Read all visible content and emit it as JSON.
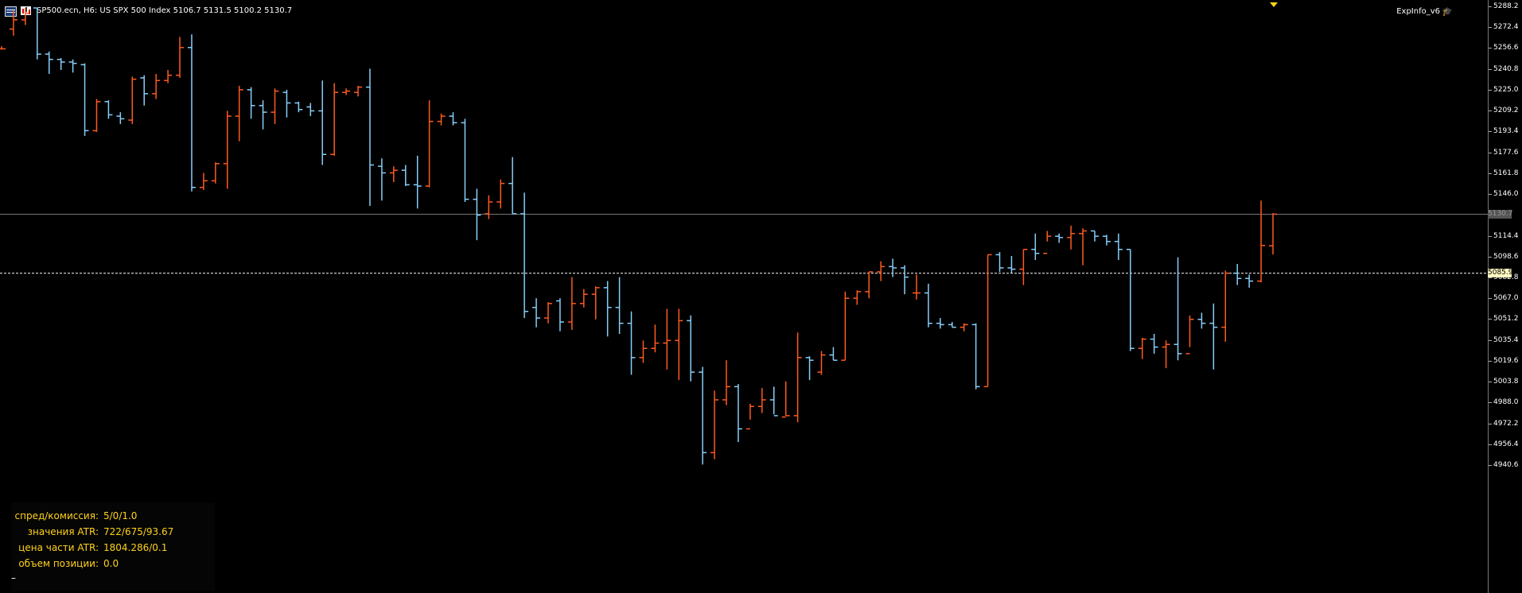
{
  "header": {
    "symbol_line": "SP500.ecn, H6:  US SPX 500 Index  5106.7 5131.5 5100.2 5130.7",
    "indicator_name": "ExpInfo_v6",
    "icons": [
      "chart-grid-icon",
      "bar-chart-icon",
      "graduation-cap-icon"
    ]
  },
  "price_axis": {
    "labels": [
      "5288.2",
      "5272.4",
      "5256.6",
      "5240.8",
      "5225.0",
      "5209.2",
      "5193.4",
      "5177.6",
      "5161.8",
      "5146.0",
      "5114.4",
      "5098.6",
      "5082.8",
      "5067.0",
      "5051.2",
      "5035.4",
      "5019.6",
      "5003.8",
      "4988.0",
      "4972.2",
      "4956.4",
      "4940.6"
    ],
    "current_price": "5085.9",
    "bid_price": "5130.7"
  },
  "info_panel": {
    "rows": [
      {
        "label": "спред/комиссия:",
        "value": "5/0/1.0"
      },
      {
        "label": "значения ATR:",
        "value": "722/675/93.67"
      },
      {
        "label": "цена части ATR:",
        "value": "1804.286/0.1"
      },
      {
        "label": "объем позиции:",
        "value": "0.0"
      }
    ],
    "footer": "–"
  },
  "colors": {
    "up": "#ff5a1f",
    "down": "#87cefa",
    "background": "#000000",
    "text": "#ffd21a"
  },
  "chart_data": {
    "type": "ohlc",
    "bars": [
      {
        "o": 5256.0,
        "h": 5258.0,
        "l": 5256.0,
        "c": 5256.0
      },
      {
        "o": 5271.0,
        "h": 5285.0,
        "l": 5266.0,
        "c": 5278.0
      },
      {
        "o": 5278.0,
        "h": 5287.0,
        "l": 5274.0,
        "c": 5283.0
      },
      {
        "o": 5287.0,
        "h": 5287.0,
        "l": 5248.0,
        "c": 5252.0
      },
      {
        "o": 5252.0,
        "h": 5254.0,
        "l": 5237.0,
        "c": 5248.0
      },
      {
        "o": 5248.0,
        "h": 5249.0,
        "l": 5240.0,
        "c": 5246.0
      },
      {
        "o": 5246.0,
        "h": 5248.0,
        "l": 5238.0,
        "c": 5245.0
      },
      {
        "o": 5244.0,
        "h": 5245.0,
        "l": 5190.0,
        "c": 5194.0
      },
      {
        "o": 5194.0,
        "h": 5218.0,
        "l": 5193.0,
        "c": 5216.0
      },
      {
        "o": 5216.0,
        "h": 5217.0,
        "l": 5203.0,
        "c": 5206.0
      },
      {
        "o": 5205.0,
        "h": 5208.0,
        "l": 5199.0,
        "c": 5203.0
      },
      {
        "o": 5202.0,
        "h": 5235.0,
        "l": 5199.0,
        "c": 5233.0
      },
      {
        "o": 5234.0,
        "h": 5236.0,
        "l": 5213.0,
        "c": 5222.0
      },
      {
        "o": 5222.0,
        "h": 5237.0,
        "l": 5218.0,
        "c": 5232.0
      },
      {
        "o": 5232.0,
        "h": 5240.0,
        "l": 5230.0,
        "c": 5236.0
      },
      {
        "o": 5236.0,
        "h": 5265.0,
        "l": 5234.0,
        "c": 5257.0
      },
      {
        "o": 5257.0,
        "h": 5267.0,
        "l": 5148.0,
        "c": 5151.0
      },
      {
        "o": 5151.0,
        "h": 5162.0,
        "l": 5149.0,
        "c": 5156.0
      },
      {
        "o": 5156.0,
        "h": 5170.0,
        "l": 5154.0,
        "c": 5169.0
      },
      {
        "o": 5169.0,
        "h": 5209.0,
        "l": 5150.0,
        "c": 5205.0
      },
      {
        "o": 5205.0,
        "h": 5228.0,
        "l": 5186.0,
        "c": 5225.0
      },
      {
        "o": 5225.0,
        "h": 5227.0,
        "l": 5203.0,
        "c": 5213.0
      },
      {
        "o": 5213.0,
        "h": 5217.0,
        "l": 5195.0,
        "c": 5208.0
      },
      {
        "o": 5208.0,
        "h": 5226.0,
        "l": 5199.0,
        "c": 5224.0
      },
      {
        "o": 5223.0,
        "h": 5225.0,
        "l": 5204.0,
        "c": 5215.0
      },
      {
        "o": 5215.0,
        "h": 5216.0,
        "l": 5208.0,
        "c": 5210.0
      },
      {
        "o": 5212.0,
        "h": 5215.0,
        "l": 5205.0,
        "c": 5209.0
      },
      {
        "o": 5209.0,
        "h": 5232.0,
        "l": 5168.0,
        "c": 5176.0
      },
      {
        "o": 5176.0,
        "h": 5230.0,
        "l": 5175.0,
        "c": 5223.0
      },
      {
        "o": 5223.0,
        "h": 5226.0,
        "l": 5221.0,
        "c": 5224.0
      },
      {
        "o": 5223.0,
        "h": 5228.0,
        "l": 5220.0,
        "c": 5227.0
      },
      {
        "o": 5227.0,
        "h": 5241.0,
        "l": 5137.0,
        "c": 5168.0
      },
      {
        "o": 5167.0,
        "h": 5173.0,
        "l": 5141.0,
        "c": 5162.0
      },
      {
        "o": 5162.0,
        "h": 5167.0,
        "l": 5155.0,
        "c": 5164.0
      },
      {
        "o": 5164.0,
        "h": 5168.0,
        "l": 5152.0,
        "c": 5153.0
      },
      {
        "o": 5153.0,
        "h": 5175.0,
        "l": 5135.0,
        "c": 5152.0
      },
      {
        "o": 5152.0,
        "h": 5217.0,
        "l": 5151.0,
        "c": 5201.0
      },
      {
        "o": 5201.0,
        "h": 5207.0,
        "l": 5198.0,
        "c": 5205.0
      },
      {
        "o": 5205.0,
        "h": 5208.0,
        "l": 5198.0,
        "c": 5200.0
      },
      {
        "o": 5200.0,
        "h": 5203.0,
        "l": 5140.0,
        "c": 5142.0
      },
      {
        "o": 5142.0,
        "h": 5150.0,
        "l": 5111.0,
        "c": 5130.0
      },
      {
        "o": 5131.0,
        "h": 5145.0,
        "l": 5127.0,
        "c": 5140.0
      },
      {
        "o": 5140.0,
        "h": 5157.0,
        "l": 5135.0,
        "c": 5154.0
      },
      {
        "o": 5154.0,
        "h": 5174.0,
        "l": 5131.0,
        "c": 5131.0
      },
      {
        "o": 5131.0,
        "h": 5147.0,
        "l": 5052.0,
        "c": 5057.0
      },
      {
        "o": 5060.0,
        "h": 5067.0,
        "l": 5045.0,
        "c": 5052.0
      },
      {
        "o": 5052.0,
        "h": 5064.0,
        "l": 5048.0,
        "c": 5063.0
      },
      {
        "o": 5065.0,
        "h": 5067.0,
        "l": 5042.0,
        "c": 5049.0
      },
      {
        "o": 5049.0,
        "h": 5083.0,
        "l": 5043.0,
        "c": 5063.0
      },
      {
        "o": 5063.0,
        "h": 5074.0,
        "l": 5060.0,
        "c": 5070.0
      },
      {
        "o": 5070.0,
        "h": 5076.0,
        "l": 5051.0,
        "c": 5075.0
      },
      {
        "o": 5075.0,
        "h": 5080.0,
        "l": 5038.0,
        "c": 5060.0
      },
      {
        "o": 5060.0,
        "h": 5083.0,
        "l": 5040.0,
        "c": 5048.0
      },
      {
        "o": 5048.0,
        "h": 5057.0,
        "l": 5009.0,
        "c": 5022.0
      },
      {
        "o": 5022.0,
        "h": 5035.0,
        "l": 5018.0,
        "c": 5029.0
      },
      {
        "o": 5029.0,
        "h": 5047.0,
        "l": 5026.0,
        "c": 5033.0
      },
      {
        "o": 5033.0,
        "h": 5059.0,
        "l": 5013.0,
        "c": 5035.0
      },
      {
        "o": 5035.0,
        "h": 5059.0,
        "l": 5005.0,
        "c": 5050.0
      },
      {
        "o": 5050.0,
        "h": 5054.0,
        "l": 5004.0,
        "c": 5011.0
      },
      {
        "o": 5011.0,
        "h": 5015.0,
        "l": 4941.0,
        "c": 4950.0
      },
      {
        "o": 4950.0,
        "h": 4997.0,
        "l": 4945.0,
        "c": 4990.0
      },
      {
        "o": 4990.0,
        "h": 5020.0,
        "l": 4986.0,
        "c": 5000.0
      },
      {
        "o": 5000.0,
        "h": 5002.0,
        "l": 4958.0,
        "c": 4968.0
      },
      {
        "o": 4968.0,
        "h": 4987.0,
        "l": 4975.0,
        "c": 4985.0
      },
      {
        "o": 4985.0,
        "h": 4999.0,
        "l": 4980.0,
        "c": 4990.0
      },
      {
        "o": 4990.0,
        "h": 5000.0,
        "l": 4979.0,
        "c": 4978.0
      },
      {
        "o": 4977.0,
        "h": 5004.0,
        "l": 4978.0,
        "c": 4978.0
      },
      {
        "o": 4978.0,
        "h": 5041.0,
        "l": 4973.0,
        "c": 5022.0
      },
      {
        "o": 5022.0,
        "h": 5023.0,
        "l": 5005.0,
        "c": 5020.0
      },
      {
        "o": 5011.0,
        "h": 5027.0,
        "l": 5009.0,
        "c": 5024.0
      },
      {
        "o": 5024.0,
        "h": 5030.0,
        "l": 5020.0,
        "c": 5020.0
      },
      {
        "o": 5020.0,
        "h": 5072.0,
        "l": 5020.0,
        "c": 5067.0
      },
      {
        "o": 5067.0,
        "h": 5073.0,
        "l": 5062.0,
        "c": 5072.0
      },
      {
        "o": 5072.0,
        "h": 5087.0,
        "l": 5067.0,
        "c": 5087.0
      },
      {
        "o": 5087.0,
        "h": 5095.0,
        "l": 5080.0,
        "c": 5091.0
      },
      {
        "o": 5091.0,
        "h": 5097.0,
        "l": 5083.0,
        "c": 5090.0
      },
      {
        "o": 5090.0,
        "h": 5092.0,
        "l": 5070.0,
        "c": 5083.0
      },
      {
        "o": 5071.0,
        "h": 5085.0,
        "l": 5066.0,
        "c": 5071.0
      },
      {
        "o": 5071.0,
        "h": 5078.0,
        "l": 5045.0,
        "c": 5048.0
      },
      {
        "o": 5048.0,
        "h": 5052.0,
        "l": 5044.0,
        "c": 5047.0
      },
      {
        "o": 5047.0,
        "h": 5049.0,
        "l": 5045.0,
        "c": 5045.0
      },
      {
        "o": 5045.0,
        "h": 5048.0,
        "l": 5042.0,
        "c": 5047.0
      },
      {
        "o": 5047.0,
        "h": 5048.0,
        "l": 4998.0,
        "c": 5000.0
      },
      {
        "o": 5000.0,
        "h": 5100.0,
        "l": 5000.0,
        "c": 5100.0
      },
      {
        "o": 5100.0,
        "h": 5102.0,
        "l": 5087.0,
        "c": 5090.0
      },
      {
        "o": 5090.0,
        "h": 5099.0,
        "l": 5086.0,
        "c": 5089.0
      },
      {
        "o": 5089.0,
        "h": 5104.0,
        "l": 5077.0,
        "c": 5104.0
      },
      {
        "o": 5104.0,
        "h": 5116.0,
        "l": 5096.0,
        "c": 5101.0
      },
      {
        "o": 5101.0,
        "h": 5118.0,
        "l": 5110.0,
        "c": 5114.0
      },
      {
        "o": 5114.0,
        "h": 5116.0,
        "l": 5109.0,
        "c": 5113.0
      },
      {
        "o": 5113.0,
        "h": 5122.0,
        "l": 5104.0,
        "c": 5116.0
      },
      {
        "o": 5116.0,
        "h": 5120.0,
        "l": 5092.0,
        "c": 5118.0
      },
      {
        "o": 5118.0,
        "h": 5118.0,
        "l": 5110.0,
        "c": 5114.0
      },
      {
        "o": 5114.0,
        "h": 5115.0,
        "l": 5107.0,
        "c": 5110.0
      },
      {
        "o": 5110.0,
        "h": 5116.0,
        "l": 5096.0,
        "c": 5104.0
      },
      {
        "o": 5104.0,
        "h": 5104.0,
        "l": 5027.0,
        "c": 5029.0
      },
      {
        "o": 5029.0,
        "h": 5037.0,
        "l": 5021.0,
        "c": 5036.0
      },
      {
        "o": 5036.0,
        "h": 5040.0,
        "l": 5025.0,
        "c": 5030.0
      },
      {
        "o": 5030.0,
        "h": 5035.0,
        "l": 5014.0,
        "c": 5032.0
      },
      {
        "o": 5032.0,
        "h": 5098.0,
        "l": 5020.0,
        "c": 5025.0
      },
      {
        "o": 5025.0,
        "h": 5054.0,
        "l": 5030.0,
        "c": 5051.0
      },
      {
        "o": 5051.0,
        "h": 5056.0,
        "l": 5044.0,
        "c": 5048.0
      },
      {
        "o": 5048.0,
        "h": 5063.0,
        "l": 5013.0,
        "c": 5045.0
      },
      {
        "o": 5045.0,
        "h": 5088.0,
        "l": 5034.0,
        "c": 5086.0
      },
      {
        "o": 5086.0,
        "h": 5093.0,
        "l": 5077.0,
        "c": 5082.0
      },
      {
        "o": 5082.0,
        "h": 5085.0,
        "l": 5075.0,
        "c": 5080.0
      },
      {
        "o": 5080.0,
        "h": 5141.0,
        "l": 5079.0,
        "c": 5107.0
      },
      {
        "o": 5106.7,
        "h": 5131.5,
        "l": 5100.2,
        "c": 5130.7
      }
    ]
  }
}
